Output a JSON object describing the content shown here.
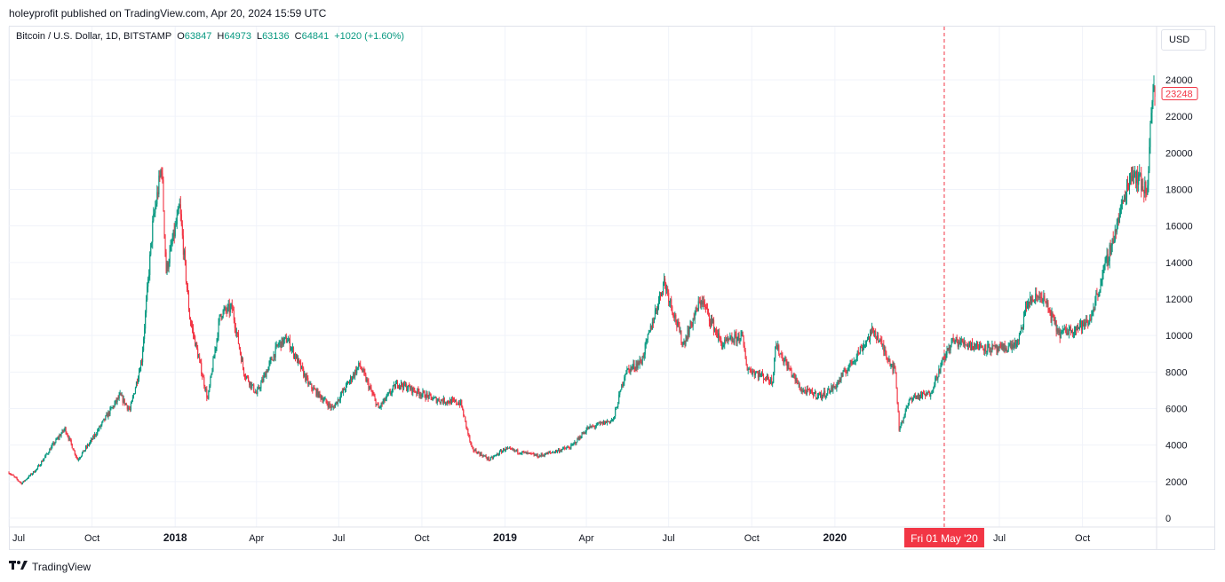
{
  "header": {
    "published": "holeyprofit published on TradingView.com, Apr 20, 2024 15:59 UTC"
  },
  "legend": {
    "symbol": "Bitcoin / U.S. Dollar, 1D, BITSTAMP",
    "o_label": "O",
    "o_value": "63847",
    "h_label": "H",
    "h_value": "64973",
    "l_label": "L",
    "l_value": "63136",
    "c_label": "C",
    "c_value": "64841",
    "change": "+1020 (+1.60%)"
  },
  "currency_button": "USD",
  "crosshair_label": "Fri 01 May '20",
  "footer": {
    "brand": "TradingView",
    "logo_icon": "tradingview-logo-icon"
  },
  "colors": {
    "up": "#089981",
    "down": "#f23645",
    "grid": "#f0f3fa",
    "crosshair": "#f23645"
  },
  "chart_data": {
    "type": "candlestick",
    "ylim": [
      0,
      24000
    ],
    "y_ticks": [
      0,
      2000,
      4000,
      6000,
      8000,
      10000,
      12000,
      14000,
      16000,
      18000,
      20000,
      22000,
      24000
    ],
    "x_ticks": [
      "Jul",
      "Oct",
      "2018",
      "Apr",
      "Jul",
      "Oct",
      "2019",
      "Apr",
      "Jul",
      "Oct",
      "2020",
      "Jul",
      "Oct"
    ],
    "x_ticks_bold": [
      "2018",
      "2019",
      "2020"
    ],
    "last_price_label": "23248",
    "last_price": 23248,
    "crosshair_date": "2020-05-01",
    "series": [
      {
        "date": "2017-07-01",
        "close": 2500
      },
      {
        "date": "2017-07-15",
        "close": 1900
      },
      {
        "date": "2017-08-01",
        "close": 2700
      },
      {
        "date": "2017-08-20",
        "close": 4100
      },
      {
        "date": "2017-09-01",
        "close": 4900
      },
      {
        "date": "2017-09-15",
        "close": 3200
      },
      {
        "date": "2017-10-01",
        "close": 4300
      },
      {
        "date": "2017-10-20",
        "close": 5800
      },
      {
        "date": "2017-11-01",
        "close": 6700
      },
      {
        "date": "2017-11-12",
        "close": 5900
      },
      {
        "date": "2017-11-25",
        "close": 8700
      },
      {
        "date": "2017-12-07",
        "close": 16000
      },
      {
        "date": "2017-12-17",
        "close": 19300
      },
      {
        "date": "2017-12-22",
        "close": 13500
      },
      {
        "date": "2018-01-06",
        "close": 17000
      },
      {
        "date": "2018-01-17",
        "close": 11000
      },
      {
        "date": "2018-02-06",
        "close": 6500
      },
      {
        "date": "2018-02-20",
        "close": 11200
      },
      {
        "date": "2018-03-05",
        "close": 11500
      },
      {
        "date": "2018-03-18",
        "close": 8000
      },
      {
        "date": "2018-04-01",
        "close": 6800
      },
      {
        "date": "2018-04-25",
        "close": 9500
      },
      {
        "date": "2018-05-05",
        "close": 9800
      },
      {
        "date": "2018-05-29",
        "close": 7300
      },
      {
        "date": "2018-06-24",
        "close": 6000
      },
      {
        "date": "2018-07-24",
        "close": 8400
      },
      {
        "date": "2018-08-14",
        "close": 6000
      },
      {
        "date": "2018-09-04",
        "close": 7400
      },
      {
        "date": "2018-10-15",
        "close": 6500
      },
      {
        "date": "2018-11-13",
        "close": 6300
      },
      {
        "date": "2018-11-25",
        "close": 3800
      },
      {
        "date": "2018-12-15",
        "close": 3200
      },
      {
        "date": "2019-01-01",
        "close": 3800
      },
      {
        "date": "2019-02-07",
        "close": 3400
      },
      {
        "date": "2019-03-15",
        "close": 3900
      },
      {
        "date": "2019-04-02",
        "close": 4900
      },
      {
        "date": "2019-05-01",
        "close": 5400
      },
      {
        "date": "2019-05-14",
        "close": 8000
      },
      {
        "date": "2019-06-01",
        "close": 8600
      },
      {
        "date": "2019-06-26",
        "close": 13000
      },
      {
        "date": "2019-07-17",
        "close": 9500
      },
      {
        "date": "2019-08-06",
        "close": 12000
      },
      {
        "date": "2019-08-29",
        "close": 9500
      },
      {
        "date": "2019-09-20",
        "close": 10000
      },
      {
        "date": "2019-09-26",
        "close": 8200
      },
      {
        "date": "2019-10-24",
        "close": 7500
      },
      {
        "date": "2019-10-27",
        "close": 9500
      },
      {
        "date": "2019-11-25",
        "close": 7000
      },
      {
        "date": "2019-12-17",
        "close": 6700
      },
      {
        "date": "2020-01-01",
        "close": 7200
      },
      {
        "date": "2020-02-13",
        "close": 10300
      },
      {
        "date": "2020-03-08",
        "close": 8000
      },
      {
        "date": "2020-03-12",
        "close": 4900
      },
      {
        "date": "2020-03-25",
        "close": 6600
      },
      {
        "date": "2020-04-15",
        "close": 6800
      },
      {
        "date": "2020-05-01",
        "close": 8800
      },
      {
        "date": "2020-05-10",
        "close": 9700
      },
      {
        "date": "2020-06-01",
        "close": 9500
      },
      {
        "date": "2020-07-01",
        "close": 9200
      },
      {
        "date": "2020-07-22",
        "close": 9600
      },
      {
        "date": "2020-08-01",
        "close": 11800
      },
      {
        "date": "2020-08-17",
        "close": 12200
      },
      {
        "date": "2020-09-05",
        "close": 10100
      },
      {
        "date": "2020-10-08",
        "close": 10700
      },
      {
        "date": "2020-10-21",
        "close": 12900
      },
      {
        "date": "2020-11-05",
        "close": 15500
      },
      {
        "date": "2020-11-24",
        "close": 19000
      },
      {
        "date": "2020-12-01",
        "close": 18700
      },
      {
        "date": "2020-12-11",
        "close": 17800
      },
      {
        "date": "2020-12-17",
        "close": 23000
      },
      {
        "date": "2020-12-20",
        "close": 23248
      }
    ]
  }
}
